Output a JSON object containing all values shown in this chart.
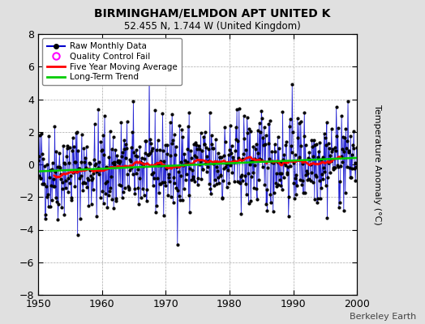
{
  "title": "BIRMINGHAM/ELMDON APT UNITED K",
  "subtitle": "52.455 N, 1.744 W (United Kingdom)",
  "ylabel": "Temperature Anomaly (°C)",
  "xlabel_bottom": "Berkeley Earth",
  "xlim": [
    1950,
    2000
  ],
  "ylim": [
    -8,
    8
  ],
  "yticks": [
    -8,
    -6,
    -4,
    -2,
    0,
    2,
    4,
    6,
    8
  ],
  "xticks": [
    1950,
    1960,
    1970,
    1980,
    1990,
    2000
  ],
  "bg_color": "#e0e0e0",
  "plot_bg_color": "#ffffff",
  "raw_line_color": "#0000cc",
  "raw_marker_color": "#000000",
  "moving_avg_color": "#ff0000",
  "trend_color": "#00cc00",
  "qc_fail_color": "#ff00ff",
  "legend_labels": [
    "Raw Monthly Data",
    "Quality Control Fail",
    "Five Year Moving Average",
    "Long-Term Trend"
  ],
  "seed": 42,
  "n_years": 50,
  "start_year": 1950
}
